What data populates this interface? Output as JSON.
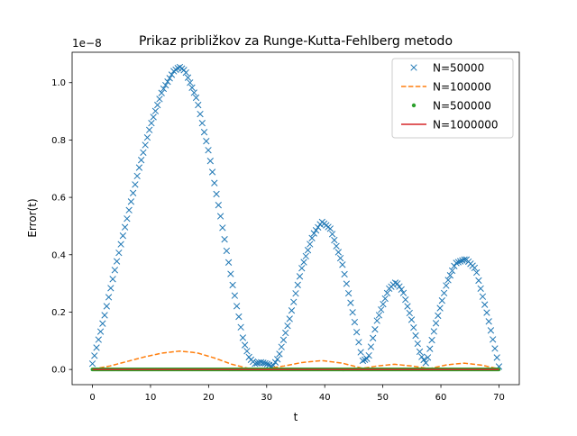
{
  "chart_data": {
    "type": "line",
    "title": "Prikaz približkov za Runge-Kutta-Fehlberg metodo",
    "xlabel": "t",
    "ylabel": "Error(t)",
    "y_scale_label": "1e−8",
    "y_scale": 1e-08,
    "xlim": [
      -3.5,
      73.5
    ],
    "ylim": [
      -0.053,
      1.106
    ],
    "xticks": [
      0,
      10,
      20,
      30,
      40,
      50,
      60,
      70
    ],
    "xtick_labels": [
      "0",
      "10",
      "20",
      "30",
      "40",
      "50",
      "60",
      "70"
    ],
    "yticks": [
      0.0,
      0.2,
      0.4,
      0.6,
      0.8,
      1.0
    ],
    "ytick_labels": [
      "0.0",
      "0.2",
      "0.4",
      "0.6",
      "0.8",
      "1.0"
    ],
    "grid": false,
    "legend_position": "upper right",
    "series": [
      {
        "name": "N=50000",
        "style": "x-markers",
        "color": "#1f77b4",
        "x": [
          0,
          2,
          4,
          6,
          8,
          10,
          12,
          14,
          15,
          16,
          18,
          20,
          22,
          24,
          26,
          27,
          28,
          29,
          30,
          31,
          32,
          34,
          36,
          38,
          39.5,
          41,
          43,
          45,
          46.5,
          47.5,
          49,
          51,
          52.3,
          53.5,
          55,
          56.5,
          57.5,
          59,
          61,
          62.5,
          64.3,
          66,
          68,
          70
        ],
        "values": [
          0.02,
          0.18,
          0.36,
          0.53,
          0.7,
          0.85,
          0.97,
          1.04,
          1.055,
          1.04,
          0.94,
          0.76,
          0.54,
          0.31,
          0.1,
          0.04,
          0.02,
          0.025,
          0.02,
          0.01,
          0.04,
          0.18,
          0.35,
          0.47,
          0.515,
          0.49,
          0.37,
          0.18,
          0.03,
          0.04,
          0.17,
          0.28,
          0.305,
          0.27,
          0.17,
          0.05,
          0.02,
          0.15,
          0.3,
          0.37,
          0.385,
          0.35,
          0.19,
          0.01
        ]
      },
      {
        "name": "N=100000",
        "style": "dashed",
        "color": "#ff7f0e",
        "x": [
          0,
          3,
          6,
          9,
          12,
          15,
          18,
          21,
          24,
          27,
          30,
          33,
          36,
          39.5,
          43,
          46.5,
          49,
          52,
          55,
          58,
          61,
          64,
          67,
          70
        ],
        "values": [
          0.001,
          0.012,
          0.028,
          0.044,
          0.057,
          0.064,
          0.058,
          0.04,
          0.018,
          0.003,
          0.003,
          0.012,
          0.024,
          0.031,
          0.022,
          0.004,
          0.012,
          0.018,
          0.012,
          0.003,
          0.016,
          0.022,
          0.015,
          0.002
        ]
      },
      {
        "name": "N=500000",
        "style": "dot-markers",
        "color": "#2ca02c",
        "x": [
          0,
          70
        ],
        "values": [
          0.0,
          0.0
        ]
      },
      {
        "name": "N=1000000",
        "style": "solid",
        "color": "#d62728",
        "x": [
          0,
          70
        ],
        "values": [
          0.0,
          0.0
        ]
      }
    ]
  }
}
